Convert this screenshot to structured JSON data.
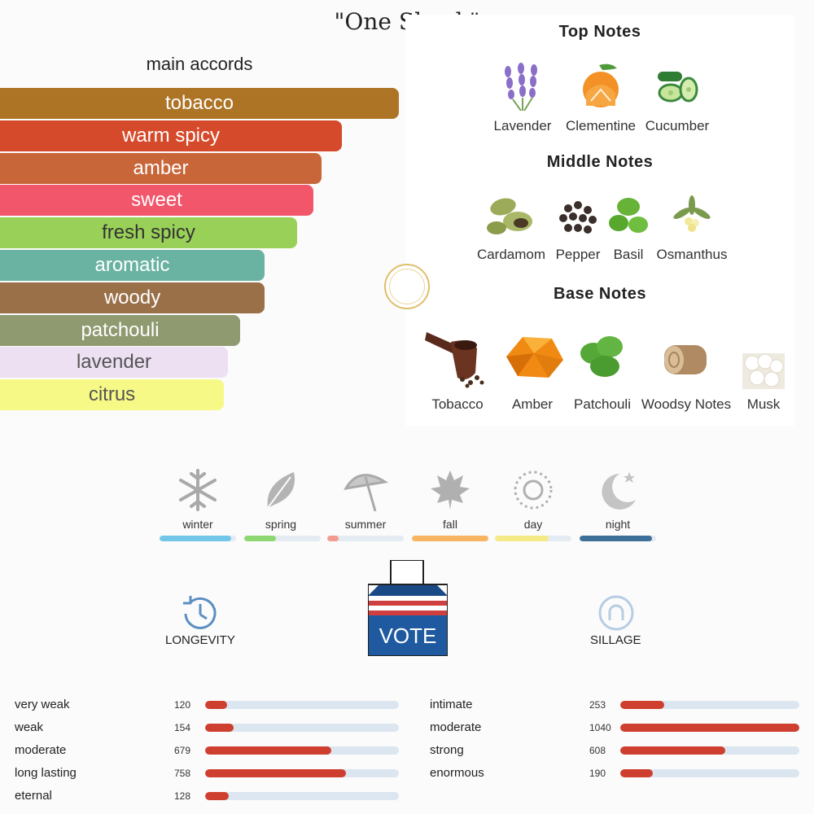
{
  "title": "\"One Shock\"",
  "accords": {
    "heading": "main accords",
    "items": [
      {
        "label": "tobacco",
        "color": "#ad7425",
        "text": "#ffffff",
        "level": 0.98
      },
      {
        "label": "warm spicy",
        "color": "#d64a2c",
        "text": "#ffffff",
        "level": 0.84
      },
      {
        "label": "amber",
        "color": "#c8663a",
        "text": "#ffffff",
        "level": 0.79
      },
      {
        "label": "sweet",
        "color": "#f2566b",
        "text": "#ffffff",
        "level": 0.77
      },
      {
        "label": "fresh spicy",
        "color": "#99d158",
        "text": "#333333",
        "level": 0.73
      },
      {
        "label": "aromatic",
        "color": "#6ab3a3",
        "text": "#ffffff",
        "level": 0.65
      },
      {
        "label": "woody",
        "color": "#9a7049",
        "text": "#ffffff",
        "level": 0.65
      },
      {
        "label": "patchouli",
        "color": "#8f9a70",
        "text": "#ffffff",
        "level": 0.59
      },
      {
        "label": "lavender",
        "color": "#ede0f2",
        "text": "#555555",
        "level": 0.56
      },
      {
        "label": "citrus",
        "color": "#f7f986",
        "text": "#555555",
        "level": 0.55
      }
    ]
  },
  "notes": {
    "top": {
      "heading": "Top Notes",
      "items": [
        "Lavender",
        "Clementine",
        "Cucumber"
      ]
    },
    "middle": {
      "heading": "Middle Notes",
      "items": [
        "Cardamom",
        "Pepper",
        "Basil",
        "Osmanthus"
      ]
    },
    "base": {
      "heading": "Base Notes",
      "items": [
        "Tobacco",
        "Amber",
        "Patchouli",
        "Woodsy Notes",
        "Musk"
      ]
    }
  },
  "seasons": [
    {
      "label": "winter",
      "icon": "snowflake-icon",
      "level": 0.94,
      "color": "#72c7e8"
    },
    {
      "label": "spring",
      "icon": "leaf-icon",
      "level": 0.42,
      "color": "#8ed873"
    },
    {
      "label": "summer",
      "icon": "umbrella-icon",
      "level": 0.15,
      "color": "#f49b8f"
    },
    {
      "label": "fall",
      "icon": "maple-leaf-icon",
      "level": 1.0,
      "color": "#f8b461"
    },
    {
      "label": "day",
      "icon": "sun-icon",
      "level": 0.7,
      "color": "#f6ea86"
    },
    {
      "label": "night",
      "icon": "moon-stars-icon",
      "level": 0.95,
      "color": "#3e6f98"
    }
  ],
  "longevity": {
    "label": "LONGEVITY",
    "icon": "clock-icon",
    "max": 1040,
    "rows": [
      {
        "label": "very weak",
        "count": "120",
        "value": 120
      },
      {
        "label": "weak",
        "count": "154",
        "value": 154
      },
      {
        "label": "moderate",
        "count": "679",
        "value": 679
      },
      {
        "label": "long lasting",
        "count": "758",
        "value": 758
      },
      {
        "label": "eternal",
        "count": "128",
        "value": 128
      }
    ]
  },
  "sillage": {
    "label": "SILLAGE",
    "icon": "sillage-icon",
    "max": 1040,
    "rows": [
      {
        "label": "intimate",
        "count": "253",
        "value": 253
      },
      {
        "label": "moderate",
        "count": "1040",
        "value": 1040
      },
      {
        "label": "strong",
        "count": "608",
        "value": 608
      },
      {
        "label": "enormous",
        "count": "190",
        "value": 190
      }
    ]
  },
  "vote": {
    "label": "VOTE",
    "icon": "ballot-box-icon"
  }
}
